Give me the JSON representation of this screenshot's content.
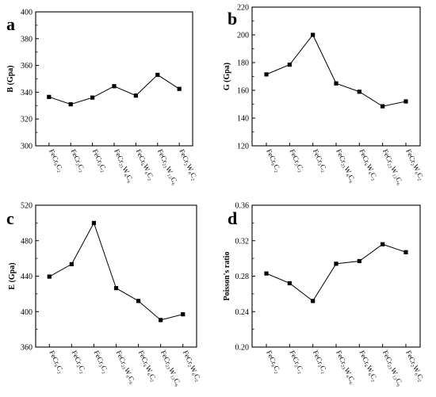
{
  "chart_data": [
    {
      "panel": "a",
      "type": "line",
      "ylabel": "B (Gpa)",
      "ylim": [
        300,
        400
      ],
      "yticks": [
        300,
        320,
        340,
        360,
        380,
        400
      ],
      "categories": [
        "FeCr₆C₂",
        "FeCr₂C₂",
        "FeCr₃C₂",
        "FeCr₂₃W₆C₆",
        "FeCr₆W₆C₂",
        "FeCr₂₃W₁₂C₆",
        "FeCr₂W₆C₂"
      ],
      "values": [
        336.5,
        331,
        336,
        344.5,
        337.5,
        353,
        342.5
      ]
    },
    {
      "panel": "b",
      "type": "line",
      "ylabel": "G (Gpa)",
      "ylim": [
        120,
        220
      ],
      "yticks": [
        120,
        140,
        160,
        180,
        200,
        220
      ],
      "categories": [
        "FeCr₆C₂",
        "FeCr₂C₂",
        "FeCr₃C₂",
        "FeCr₂₃W₆C₆",
        "FeCr₆W₆C₂",
        "FeCr₂₃W₁₂C₆",
        "FeCr₂W₆C₂"
      ],
      "values": [
        171.5,
        178.5,
        200,
        165,
        159,
        148.5,
        152
      ]
    },
    {
      "panel": "c",
      "type": "line",
      "ylabel": "E (Gpa)",
      "ylim": [
        360,
        520
      ],
      "yticks": [
        360,
        400,
        440,
        480,
        520
      ],
      "categories": [
        "FeCr₆C₂",
        "FeCr₂C₂",
        "FeCr₃C₂",
        "FeCr₂₃W₆C₆",
        "FeCr₆W₆C₂",
        "FeCr₂₃W₁₂C₆",
        "FeCr₂W₆C₂"
      ],
      "values": [
        439.5,
        453.5,
        500,
        426.5,
        412,
        390.5,
        397
      ]
    },
    {
      "panel": "d",
      "type": "line",
      "ylabel": "Poisson's ratio",
      "ylim": [
        0.2,
        0.36
      ],
      "yticks": [
        "0.20",
        "0.24",
        "0.28",
        "0.32",
        "0.36"
      ],
      "categories": [
        "FeCr₆C₂",
        "FeCr₂C₂",
        "FeCr₃C₂",
        "FeCr₂₃W₆C₆",
        "FeCr₆W₆C₂",
        "FeCr₂₃W₁₂C₆",
        "FeCr₂W₆C₂"
      ],
      "values": [
        0.283,
        0.272,
        0.252,
        0.294,
        0.297,
        0.316,
        0.307
      ]
    }
  ]
}
